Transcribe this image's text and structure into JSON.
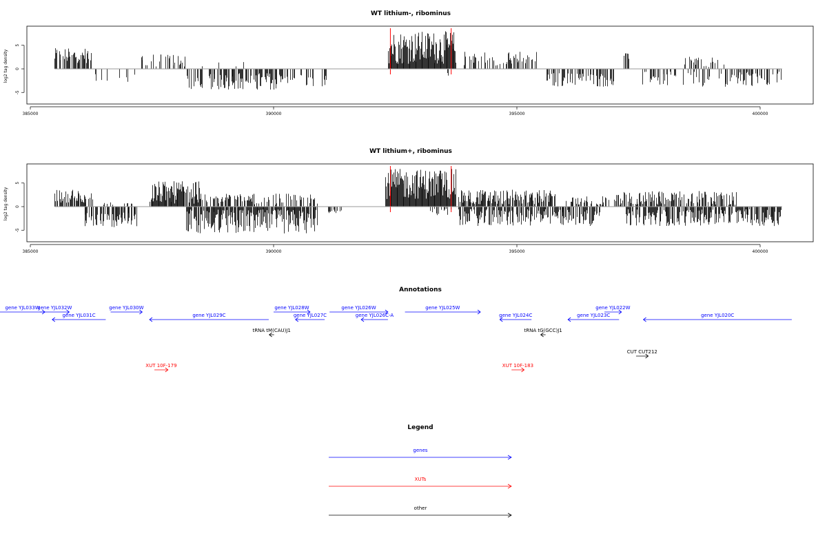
{
  "chart_data": [
    {
      "type": "bar",
      "title": "WT lithium-, ribominus",
      "ylabel": "log2 tag density",
      "xlim": [
        385000,
        400500
      ],
      "ylim": [
        -7,
        8.5
      ],
      "x_ticks": [
        385000,
        390000,
        395000,
        400000
      ],
      "x_tick_labels": [
        "385000",
        "390000",
        "395000",
        "400000"
      ],
      "y_ticks": [
        5,
        0,
        -5
      ],
      "y_tick_labels": [
        "5",
        "0",
        "-5"
      ],
      "baseline_range": [
        385500,
        400450
      ],
      "highlight_lines": [
        392400,
        393650
      ],
      "highlight_color": "#ff0000",
      "tracks": [
        {
          "strand": "+",
          "start": 385500,
          "end": 386250,
          "mean": 2.8,
          "amp": 1.6,
          "density": 0.7
        },
        {
          "strand": "-",
          "start": 386300,
          "end": 387200,
          "mean": -2.0,
          "amp": 1.0,
          "density": 0.12
        },
        {
          "strand": "+",
          "start": 387250,
          "end": 388200,
          "mean": 1.8,
          "amp": 1.4,
          "density": 0.35
        },
        {
          "strand": "-",
          "start": 388200,
          "end": 390200,
          "mean": -2.6,
          "amp": 1.8,
          "density": 0.55
        },
        {
          "strand": "+",
          "start": 388500,
          "end": 389700,
          "mean": 0.8,
          "amp": 0.7,
          "density": 0.08
        },
        {
          "strand": "-",
          "start": 390200,
          "end": 391100,
          "mean": -2.4,
          "amp": 1.3,
          "density": 0.3
        },
        {
          "strand": "+",
          "start": 392350,
          "end": 393750,
          "mean": 4.5,
          "amp": 3.5,
          "density": 1.0
        },
        {
          "strand": "-",
          "start": 393500,
          "end": 393650,
          "mean": -1.5,
          "amp": 1.0,
          "density": 0.2
        },
        {
          "strand": "+",
          "start": 393900,
          "end": 395400,
          "mean": 2.2,
          "amp": 1.5,
          "density": 0.45
        },
        {
          "strand": "-",
          "start": 395600,
          "end": 397000,
          "mean": -2.3,
          "amp": 1.5,
          "density": 0.45
        },
        {
          "strand": "+",
          "start": 397200,
          "end": 397300,
          "mean": 2.8,
          "amp": 0.7,
          "density": 0.4
        },
        {
          "strand": "-",
          "start": 397500,
          "end": 400450,
          "mean": -2.2,
          "amp": 1.6,
          "density": 0.35
        },
        {
          "strand": "+",
          "start": 398400,
          "end": 399300,
          "mean": 1.5,
          "amp": 1.2,
          "density": 0.2
        }
      ]
    },
    {
      "type": "bar",
      "title": "WT lithium+, ribominus",
      "ylabel": "log2 tag density",
      "xlim": [
        385000,
        400500
      ],
      "ylim": [
        -7,
        8.5
      ],
      "x_ticks": [
        385000,
        390000,
        395000,
        400000
      ],
      "x_tick_labels": [
        "385000",
        "390000",
        "395000",
        "400000"
      ],
      "y_ticks": [
        5,
        0,
        -5
      ],
      "y_tick_labels": [
        "5",
        "0",
        "-5"
      ],
      "baseline_range": [
        385500,
        400450
      ],
      "highlight_lines": [
        392400,
        393650
      ],
      "highlight_color": "#ff0000",
      "tracks": [
        {
          "strand": "+",
          "start": 385500,
          "end": 386300,
          "mean": 2.2,
          "amp": 1.4,
          "density": 0.7
        },
        {
          "strand": "-",
          "start": 386100,
          "end": 387200,
          "mean": -2.8,
          "amp": 1.6,
          "density": 0.6
        },
        {
          "strand": "+",
          "start": 386500,
          "end": 387100,
          "mean": 0.6,
          "amp": 0.5,
          "density": 0.2
        },
        {
          "strand": "+",
          "start": 387450,
          "end": 388500,
          "mean": 3.0,
          "amp": 2.4,
          "density": 0.9
        },
        {
          "strand": "-",
          "start": 388200,
          "end": 390900,
          "mean": -3.2,
          "amp": 2.6,
          "density": 0.85
        },
        {
          "strand": "+",
          "start": 388500,
          "end": 390900,
          "mean": 1.6,
          "amp": 1.2,
          "density": 0.5
        },
        {
          "strand": "-",
          "start": 391100,
          "end": 391400,
          "mean": -1.0,
          "amp": 0.4,
          "density": 0.3
        },
        {
          "strand": "+",
          "start": 392300,
          "end": 393750,
          "mean": 4.8,
          "amp": 3.2,
          "density": 1.0
        },
        {
          "strand": "-",
          "start": 393200,
          "end": 393650,
          "mean": -1.2,
          "amp": 0.8,
          "density": 0.3
        },
        {
          "strand": "+",
          "start": 393800,
          "end": 395800,
          "mean": 2.0,
          "amp": 1.6,
          "density": 0.75
        },
        {
          "strand": "-",
          "start": 393800,
          "end": 396700,
          "mean": -2.3,
          "amp": 1.8,
          "density": 0.65
        },
        {
          "strand": "+",
          "start": 396000,
          "end": 396900,
          "mean": 1.2,
          "amp": 1.0,
          "density": 0.35
        },
        {
          "strand": "-",
          "start": 397200,
          "end": 400450,
          "mean": -2.3,
          "amp": 1.8,
          "density": 0.7
        },
        {
          "strand": "+",
          "start": 397000,
          "end": 399500,
          "mean": 1.8,
          "amp": 1.5,
          "density": 0.6
        }
      ]
    }
  ],
  "annotations": {
    "title": "Annotations",
    "features": [
      {
        "label": "gene YJL033W",
        "kind": "gene",
        "row": 0,
        "start": 384200,
        "end": 385300,
        "dir": "+"
      },
      {
        "label": "gene YJL032W",
        "kind": "gene",
        "row": 0,
        "start": 385200,
        "end": 385800,
        "dir": "+"
      },
      {
        "label": "gene YJL031C",
        "kind": "gene",
        "row": 1,
        "start": 385450,
        "end": 386550,
        "dir": "-"
      },
      {
        "label": "gene YJL030W",
        "kind": "gene",
        "row": 0,
        "start": 386650,
        "end": 387300,
        "dir": "+"
      },
      {
        "label": "gene YJL029C",
        "kind": "gene",
        "row": 1,
        "start": 387450,
        "end": 389900,
        "dir": "-"
      },
      {
        "label": "gene YJL028W",
        "kind": "gene",
        "row": 0,
        "start": 390000,
        "end": 390750,
        "dir": "+"
      },
      {
        "label": "gene YJL027C",
        "kind": "gene",
        "row": 1,
        "start": 390450,
        "end": 391050,
        "dir": "-"
      },
      {
        "label": "gene YJL026W",
        "kind": "gene",
        "row": 0,
        "start": 391150,
        "end": 392350,
        "dir": "+"
      },
      {
        "label": "gene YJL026C-A",
        "kind": "gene",
        "row": 1,
        "start": 391800,
        "end": 392350,
        "dir": "-"
      },
      {
        "label": "gene YJL025W",
        "kind": "gene",
        "row": 0,
        "start": 392700,
        "end": 394250,
        "dir": "+"
      },
      {
        "label": "gene YJL024C",
        "kind": "gene",
        "row": 1,
        "start": 394650,
        "end": 395300,
        "dir": "-"
      },
      {
        "label": "gene YJL023C",
        "kind": "gene",
        "row": 1,
        "start": 396050,
        "end": 397100,
        "dir": "-"
      },
      {
        "label": "gene YJL022W",
        "kind": "gene",
        "row": 0,
        "start": 396800,
        "end": 397150,
        "dir": "+"
      },
      {
        "label": "gene YJL020C",
        "kind": "gene",
        "row": 1,
        "start": 397600,
        "end": 400650,
        "dir": "-"
      },
      {
        "label": "tRNA tM(CAU)J1",
        "kind": "other",
        "row": 2,
        "start": 389910,
        "end": 390010,
        "dir": "-"
      },
      {
        "label": "tRNA tG(GCC)J1",
        "kind": "other",
        "row": 2,
        "start": 395490,
        "end": 395590,
        "dir": "-"
      },
      {
        "label": "CUT CUT212",
        "kind": "other",
        "row": 3,
        "start": 397450,
        "end": 397700,
        "dir": "+"
      },
      {
        "label": "XUT 10F-179",
        "kind": "xut",
        "row": 4,
        "start": 387550,
        "end": 387830,
        "dir": "+"
      },
      {
        "label": "XUT 10F-183",
        "kind": "xut",
        "row": 4,
        "start": 394890,
        "end": 395150,
        "dir": "+"
      }
    ]
  },
  "legend": {
    "title": "Legend",
    "items": [
      {
        "label": "genes",
        "color": "#0000ff"
      },
      {
        "label": "XUTs",
        "color": "#ff0000"
      },
      {
        "label": "other",
        "color": "#000000"
      }
    ]
  },
  "colors": {
    "gene": "#0000ff",
    "xut": "#ff0000",
    "other": "#000000",
    "baseline": "#9a9a9a"
  }
}
